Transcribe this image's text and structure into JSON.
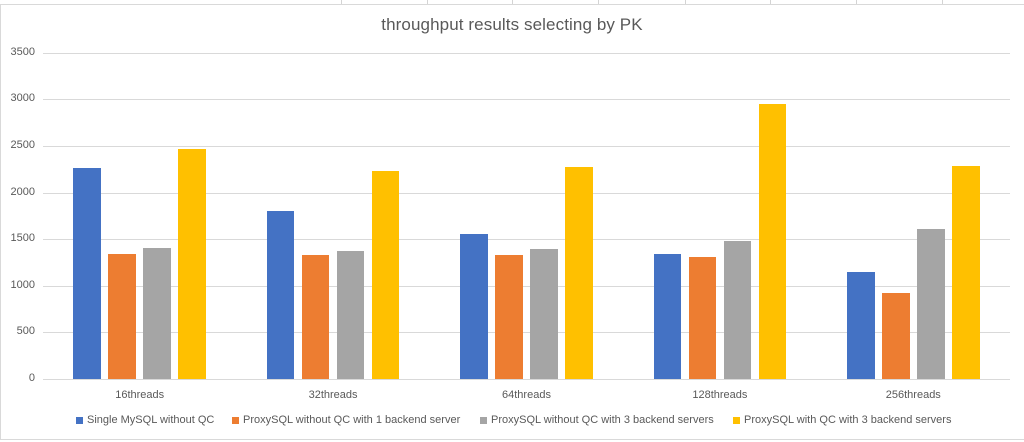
{
  "chart_data": {
    "type": "bar",
    "title": "throughput results selecting by PK",
    "xlabel": "",
    "ylabel": "",
    "ylim": [
      0,
      3500
    ],
    "yticks": [
      0,
      500,
      1000,
      1500,
      2000,
      2500,
      3000,
      3500
    ],
    "ytick_labels": [
      "0",
      "500",
      "1000",
      "1500",
      "2000",
      "2500",
      "3000",
      "3500"
    ],
    "grid": true,
    "legend_position": "bottom",
    "categories": [
      "16threads",
      "32threads",
      "64threads",
      "128threads",
      "256threads"
    ],
    "series": [
      {
        "name": "Single MySQL without QC",
        "color": "#4472C4",
        "values": [
          2260,
          1800,
          1550,
          1340,
          1150
        ]
      },
      {
        "name": "ProxySQL without QC with 1 backend server",
        "color": "#ED7D31",
        "values": [
          1340,
          1325,
          1335,
          1310,
          925
        ]
      },
      {
        "name": "ProxySQL without QC with 3 backend servers",
        "color": "#A5A5A5",
        "values": [
          1400,
          1370,
          1395,
          1475,
          1605
        ]
      },
      {
        "name": "ProxySQL with QC with 3 backend servers",
        "color": "#FFC000",
        "values": [
          2470,
          2230,
          2270,
          2950,
          2285
        ]
      }
    ]
  },
  "legend": {
    "items": [
      {
        "label": "Single MySQL without QC",
        "color": "#4472C4"
      },
      {
        "label": "ProxySQL without QC with 1 backend server",
        "color": "#ED7D31"
      },
      {
        "label": "ProxySQL without QC with 3 backend servers",
        "color": "#A5A5A5"
      },
      {
        "label": "ProxySQL with QC with 3 backend servers",
        "color": "#FFC000"
      }
    ]
  }
}
